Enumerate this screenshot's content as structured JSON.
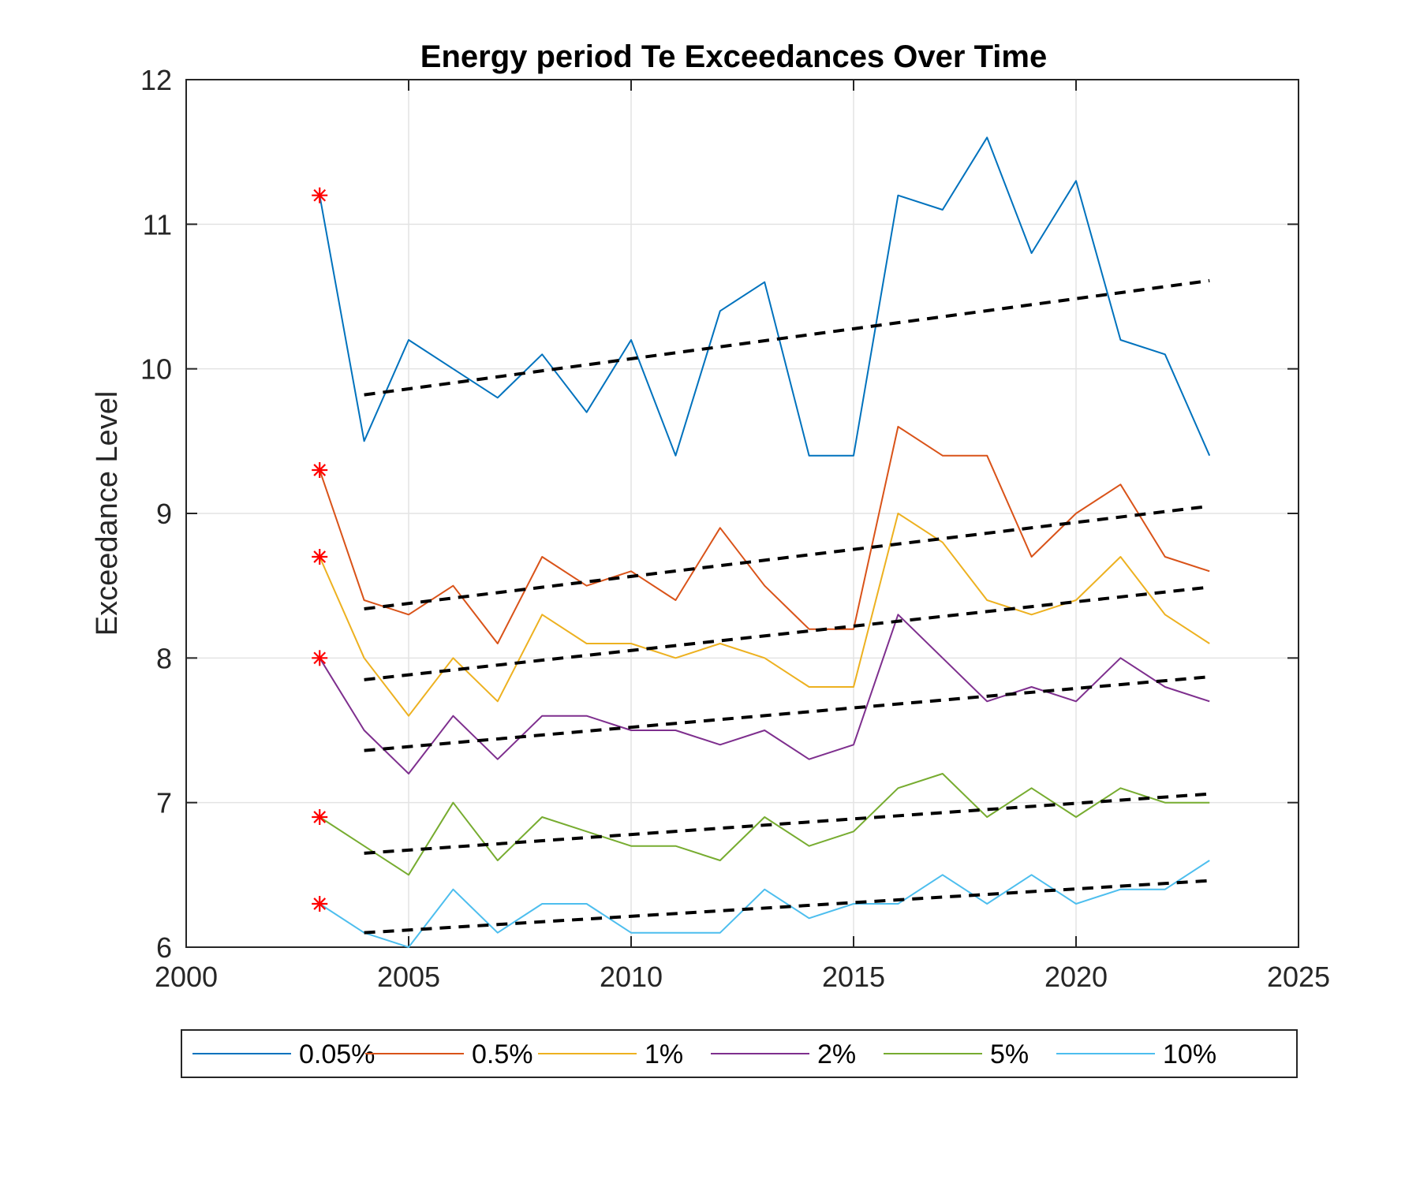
{
  "chart_data": {
    "type": "line",
    "title": "Energy period Te Exceedances Over Time",
    "xlabel": "",
    "ylabel": "Exceedance Level",
    "xlim": [
      2000,
      2025
    ],
    "ylim": [
      6,
      12
    ],
    "xticks": [
      2000,
      2005,
      2010,
      2015,
      2020,
      2025
    ],
    "yticks": [
      6,
      7,
      8,
      9,
      10,
      11,
      12
    ],
    "grid": true,
    "legend_position": "bottom-outside",
    "x": [
      2003,
      2004,
      2005,
      2006,
      2007,
      2008,
      2009,
      2010,
      2011,
      2012,
      2013,
      2014,
      2015,
      2016,
      2017,
      2018,
      2019,
      2020,
      2021,
      2022,
      2023
    ],
    "series": [
      {
        "name": "0.05%",
        "color": "#0072BD",
        "values": [
          11.2,
          9.5,
          10.2,
          10.0,
          9.8,
          10.1,
          9.7,
          10.2,
          9.4,
          10.4,
          10.6,
          9.4,
          9.4,
          11.2,
          11.1,
          11.6,
          10.8,
          11.3,
          10.2,
          10.1,
          9.4
        ],
        "trend": [
          [
            2004,
            9.82
          ],
          [
            2023,
            10.61
          ]
        ]
      },
      {
        "name": "0.5%",
        "color": "#D95319",
        "values": [
          9.3,
          8.4,
          8.3,
          8.5,
          8.1,
          8.7,
          8.5,
          8.6,
          8.4,
          8.9,
          8.5,
          8.2,
          8.2,
          9.6,
          9.4,
          9.4,
          8.7,
          9.0,
          9.2,
          8.7,
          8.6
        ],
        "trend": [
          [
            2004,
            8.34
          ],
          [
            2023,
            9.05
          ]
        ]
      },
      {
        "name": "1%",
        "color": "#EDB120",
        "values": [
          8.7,
          8.0,
          7.6,
          8.0,
          7.7,
          8.3,
          8.1,
          8.1,
          8.0,
          8.1,
          8.0,
          7.8,
          7.8,
          9.0,
          8.8,
          8.4,
          8.3,
          8.4,
          8.7,
          8.3,
          8.1
        ],
        "trend": [
          [
            2004,
            7.85
          ],
          [
            2023,
            8.49
          ]
        ]
      },
      {
        "name": "2%",
        "color": "#7E2F8E",
        "values": [
          8.0,
          7.5,
          7.2,
          7.6,
          7.3,
          7.6,
          7.6,
          7.5,
          7.5,
          7.4,
          7.5,
          7.3,
          7.4,
          8.3,
          8.0,
          7.7,
          7.8,
          7.7,
          8.0,
          7.8,
          7.7
        ],
        "trend": [
          [
            2004,
            7.36
          ],
          [
            2023,
            7.87
          ]
        ]
      },
      {
        "name": "5%",
        "color": "#77AC30",
        "values": [
          6.9,
          6.7,
          6.5,
          7.0,
          6.6,
          6.9,
          6.8,
          6.7,
          6.7,
          6.6,
          6.9,
          6.7,
          6.8,
          7.1,
          7.2,
          6.9,
          7.1,
          6.9,
          7.1,
          7.0,
          7.0
        ],
        "trend": [
          [
            2004,
            6.65
          ],
          [
            2023,
            7.06
          ]
        ]
      },
      {
        "name": "10%",
        "color": "#4DBEEE",
        "values": [
          6.3,
          6.1,
          6.0,
          6.4,
          6.1,
          6.3,
          6.3,
          6.1,
          6.1,
          6.1,
          6.4,
          6.2,
          6.3,
          6.3,
          6.5,
          6.3,
          6.5,
          6.3,
          6.4,
          6.4,
          6.6
        ],
        "trend": [
          [
            2004,
            6.1
          ],
          [
            2023,
            6.46
          ]
        ]
      }
    ],
    "marker": {
      "x": 2003,
      "symbol": "asterisk",
      "color": "#FF0000"
    },
    "trend_style": {
      "color": "#000000",
      "dash": "dashed"
    }
  }
}
